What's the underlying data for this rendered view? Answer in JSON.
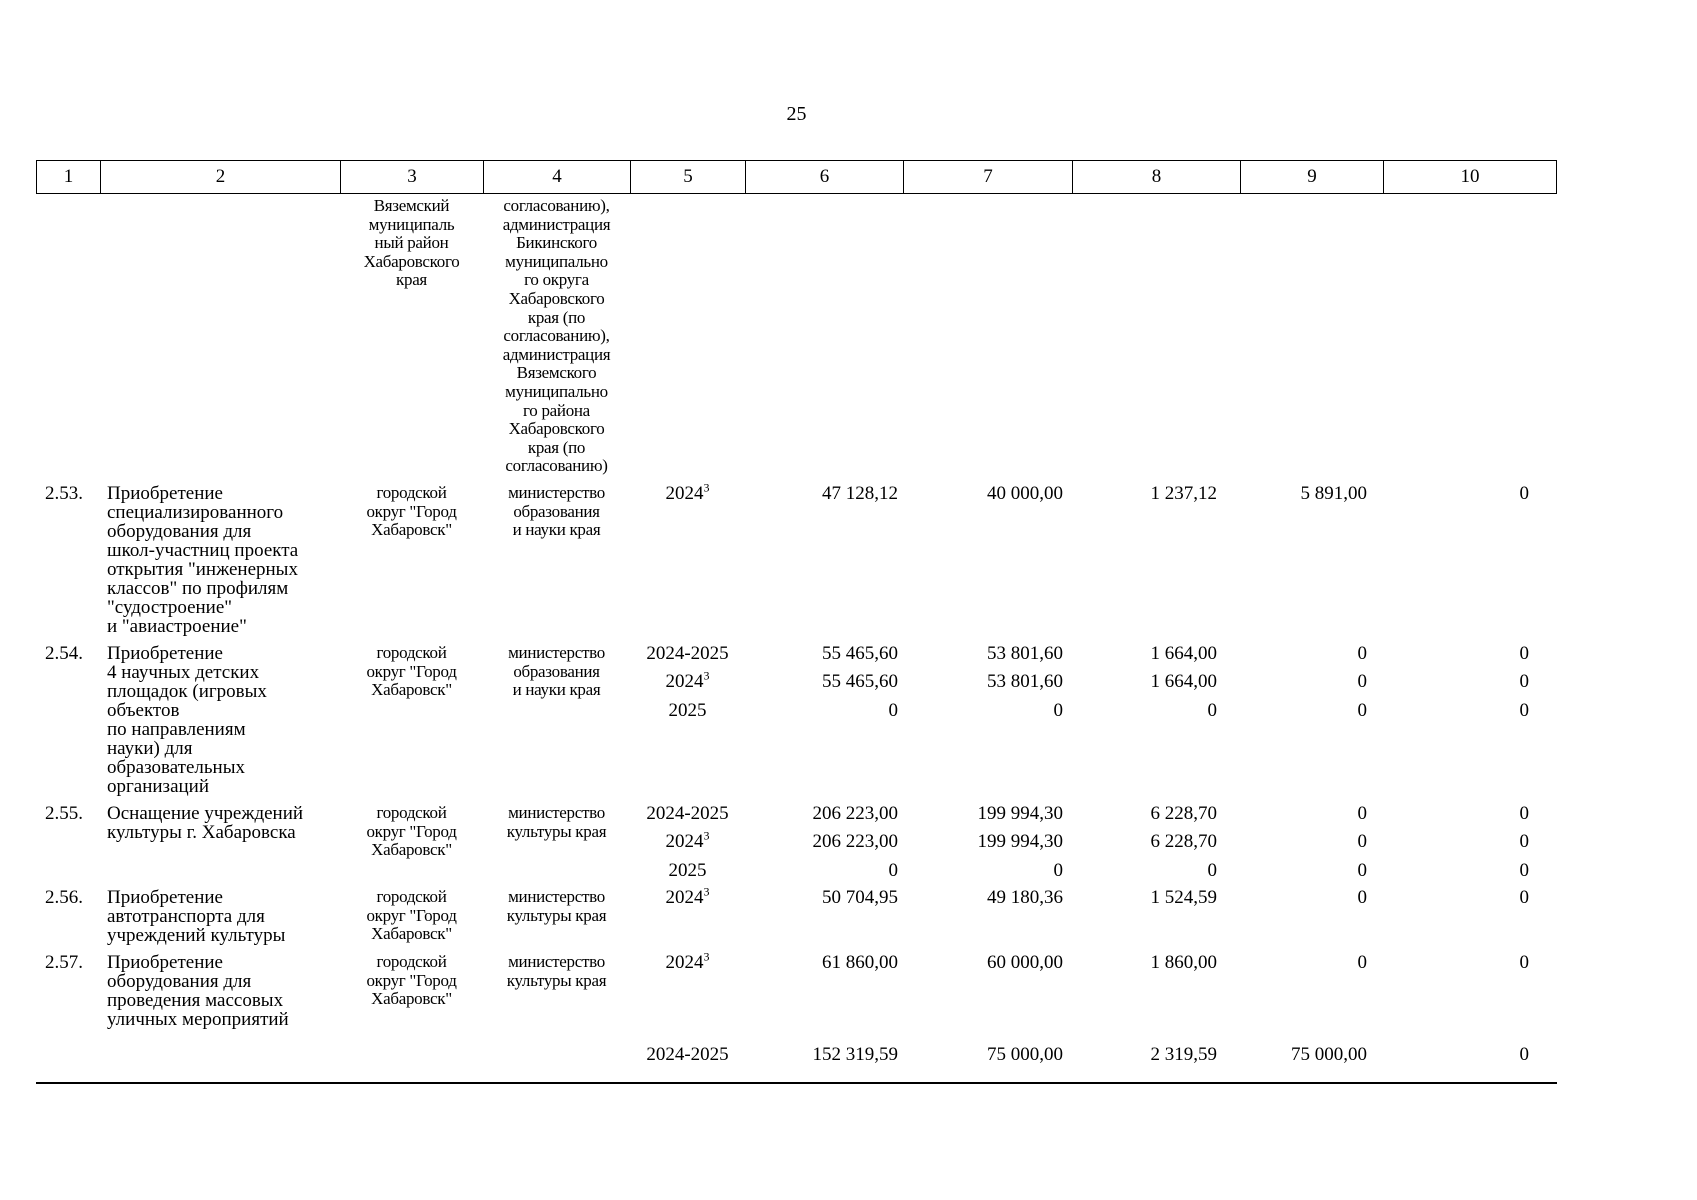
{
  "page_number": "25",
  "table": {
    "columns": [
      "1",
      "2",
      "3",
      "4",
      "5",
      "6",
      "7",
      "8",
      "9",
      "10"
    ],
    "continuation": {
      "territory_lines": [
        "Вяземский",
        "муниципаль",
        "ный район",
        "Хабаровского",
        "края"
      ],
      "executor_lines": [
        "согласованию),",
        "администрация",
        "Бикинского",
        "муниципально",
        "го округа",
        "Хабаровского",
        "края (по",
        "согласованию),",
        "администрация",
        "Вяземского",
        "муниципально",
        "го района",
        "Хабаровского",
        "края (по",
        "согласованию)"
      ]
    },
    "rows": [
      {
        "num": "2.53.",
        "name_lines": [
          "Приобретение",
          "специализированного",
          "оборудования для",
          "школ-участниц проекта",
          "открытия \"инженерных",
          "классов\" по профилям",
          "\"судостроение\"",
          "и \"авиастроение\""
        ],
        "territory_lines": [
          "городской",
          "округ \"Город",
          "Хабаровск\""
        ],
        "executor_lines": [
          "министерство",
          "образования",
          "и науки края"
        ],
        "periods": [
          {
            "text": "2024",
            "sup": "3"
          }
        ],
        "v6": [
          "47 128,12"
        ],
        "v7": [
          "40 000,00"
        ],
        "v8": [
          "1 237,12"
        ],
        "v9": [
          "5 891,00"
        ],
        "v10": [
          "0"
        ]
      },
      {
        "num": "2.54.",
        "name_lines": [
          "Приобретение",
          "4 научных детских",
          "площадок (игровых",
          "объектов",
          "по направлениям",
          "науки) для",
          "образовательных",
          "организаций"
        ],
        "territory_lines": [
          "городской",
          "округ \"Город",
          "Хабаровск\""
        ],
        "executor_lines": [
          "министерство",
          "образования",
          "и науки края"
        ],
        "periods": [
          {
            "text": "2024-2025",
            "sup": ""
          },
          {
            "text": "2024",
            "sup": "3"
          },
          {
            "text": "2025",
            "sup": ""
          }
        ],
        "v6": [
          "55 465,60",
          "55 465,60",
          "0"
        ],
        "v7": [
          "53 801,60",
          "53 801,60",
          "0"
        ],
        "v8": [
          "1 664,00",
          "1 664,00",
          "0"
        ],
        "v9": [
          "0",
          "0",
          "0"
        ],
        "v10": [
          "0",
          "0",
          "0"
        ]
      },
      {
        "num": "2.55.",
        "name_lines": [
          "Оснащение учреждений",
          "культуры г. Хабаровска"
        ],
        "territory_lines": [
          "городской",
          "округ \"Город",
          "Хабаровск\""
        ],
        "executor_lines": [
          "министерство",
          "культуры края"
        ],
        "periods": [
          {
            "text": "2024-2025",
            "sup": ""
          },
          {
            "text": "2024",
            "sup": "3"
          },
          {
            "text": "2025",
            "sup": ""
          }
        ],
        "v6": [
          "206 223,00",
          "206 223,00",
          "0"
        ],
        "v7": [
          "199 994,30",
          "199 994,30",
          "0"
        ],
        "v8": [
          "6 228,70",
          "6 228,70",
          "0"
        ],
        "v9": [
          "0",
          "0",
          "0"
        ],
        "v10": [
          "0",
          "0",
          "0"
        ]
      },
      {
        "num": "2.56.",
        "name_lines": [
          "Приобретение",
          "автотранспорта для",
          "учреждений культуры"
        ],
        "territory_lines": [
          "городской",
          "округ \"Город",
          "Хабаровск\""
        ],
        "executor_lines": [
          "министерство",
          "культуры края"
        ],
        "periods": [
          {
            "text": "2024",
            "sup": "3"
          }
        ],
        "v6": [
          "50 704,95"
        ],
        "v7": [
          "49 180,36"
        ],
        "v8": [
          "1 524,59"
        ],
        "v9": [
          "0"
        ],
        "v10": [
          "0"
        ]
      },
      {
        "num": "2.57.",
        "name_lines": [
          "Приобретение",
          "оборудования для",
          "проведения массовых",
          "уличных мероприятий"
        ],
        "territory_lines": [
          "городской",
          "округ \"Город",
          "Хабаровск\""
        ],
        "executor_lines": [
          "министерство",
          "культуры края"
        ],
        "periods": [
          {
            "text": "2024",
            "sup": "3"
          }
        ],
        "v6": [
          "61 860,00"
        ],
        "v7": [
          "60 000,00"
        ],
        "v8": [
          "1 860,00"
        ],
        "v9": [
          "0"
        ],
        "v10": [
          "0"
        ]
      },
      {
        "num": "",
        "name_lines": [],
        "territory_lines": [],
        "executor_lines": [],
        "periods": [
          {
            "text": "2024-2025",
            "sup": ""
          }
        ],
        "v6": [
          "152 319,59"
        ],
        "v7": [
          "75 000,00"
        ],
        "v8": [
          "2 319,59"
        ],
        "v9": [
          "75 000,00"
        ],
        "v10": [
          "0"
        ]
      }
    ]
  }
}
